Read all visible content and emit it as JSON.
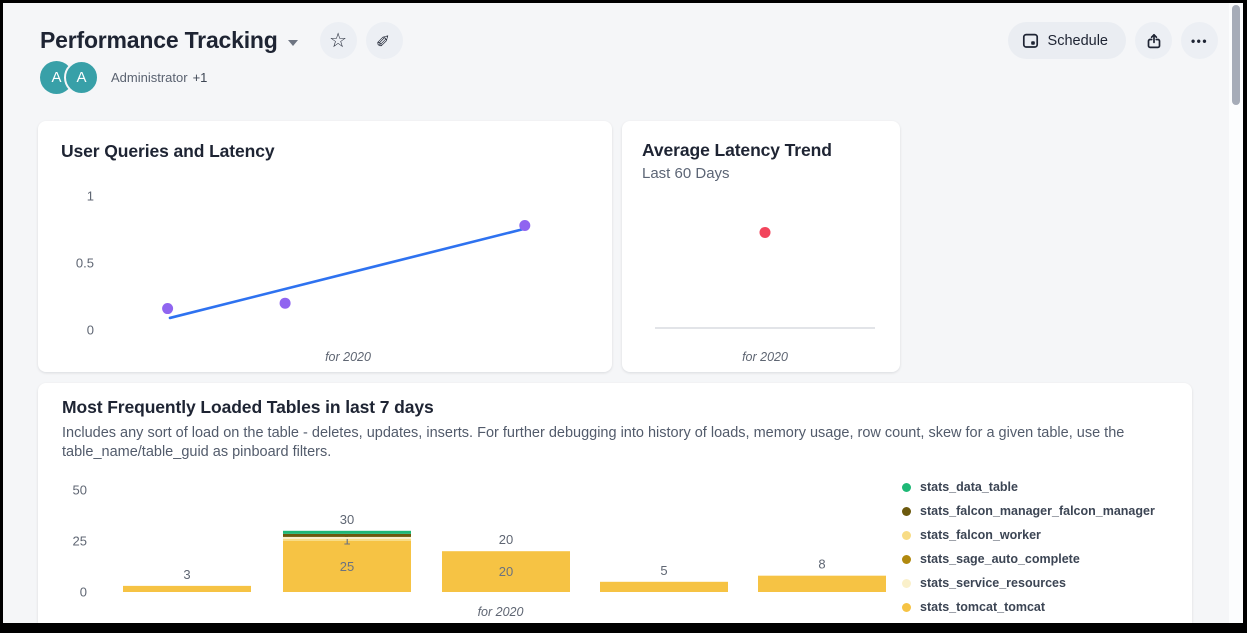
{
  "header": {
    "title": "Performance Tracking",
    "schedule_label": "Schedule",
    "icons": {
      "favorite": "☆",
      "edit": "✎",
      "more": "•••",
      "schedule": "calendar-icon",
      "share": "share-icon",
      "title_caret": "chevron-down"
    },
    "authors": {
      "avatar1": "A",
      "avatar2": "A",
      "name": "Administrator",
      "extra": "+1"
    }
  },
  "cards": [
    {
      "title": "User Queries and Latency",
      "caption": "for 2020"
    },
    {
      "title": "Average Latency Trend",
      "subtitle": "Last 60 Days",
      "caption": "for 2020"
    },
    {
      "title": "Most Frequently Loaded Tables in last 7 days",
      "description": "Includes any sort of load on the table - deletes, updates, inserts. For further debugging into history of loads, memory usage, row count, skew for a given table, use the table_name/table_guid as pinboard filters.",
      "caption": "for 2020"
    }
  ],
  "chart_data": [
    {
      "type": "scatter",
      "title": "User Queries and Latency",
      "points": [
        {
          "x": 0.08,
          "y": 0.16
        },
        {
          "x": 0.33,
          "y": 0.2
        },
        {
          "x": 0.84,
          "y": 0.78
        }
      ],
      "trendline": {
        "x1": 0.085,
        "y1": 0.09,
        "x2": 0.845,
        "y2": 0.76
      },
      "point_color": "#9065F0",
      "line_color": "#2E72F0",
      "yticks": [
        "0",
        "0.5",
        "1"
      ],
      "ylim": [
        0,
        1
      ],
      "grid": false,
      "xlabel": "",
      "ylabel": "",
      "caption": "for 2020"
    },
    {
      "type": "scatter",
      "title": "Average Latency Trend",
      "subtitle": "Last 60 Days",
      "points": [
        {
          "x": 0.5,
          "y": 0.65
        }
      ],
      "point_color": "#F2455C",
      "axis_line": true,
      "axis_line_color": "#D8DBE0",
      "yticks": [],
      "ylim": [
        0,
        1
      ],
      "grid": false,
      "xlabel": "",
      "ylabel": "",
      "caption": "for 2020"
    },
    {
      "type": "bar",
      "stacked": true,
      "title": "Most Frequently Loaded Tables in last 7 days",
      "categories": [
        "",
        "",
        "",
        "",
        ""
      ],
      "series": [
        {
          "name": "stats_data_table",
          "color": "#1EB876",
          "values": [
            0,
            1.5,
            0,
            0,
            0
          ]
        },
        {
          "name": "stats_falcon_manager_falcon_manager",
          "color": "#6C590D",
          "values": [
            0,
            1.5,
            0,
            0,
            0
          ]
        },
        {
          "name": "stats_falcon_worker",
          "color": "#F8DC85",
          "values": [
            0,
            1,
            0,
            0,
            0
          ]
        },
        {
          "name": "stats_sage_auto_complete",
          "color": "#B1890E",
          "values": [
            0,
            0,
            0,
            0,
            0
          ]
        },
        {
          "name": "stats_service_resources",
          "color": "#FAF0CA",
          "values": [
            0,
            1,
            0,
            0,
            0
          ]
        },
        {
          "name": "stats_tomcat_tomcat",
          "color": "#F6C344",
          "values": [
            3,
            25,
            20,
            5,
            8
          ]
        }
      ],
      "stack_order_bottom_to_top": [
        "stats_tomcat_tomcat",
        "stats_falcon_worker",
        "stats_service_resources",
        "stats_sage_auto_complete",
        "stats_falcon_manager_falcon_manager",
        "stats_data_table"
      ],
      "totals": [
        "3",
        "30",
        "20",
        "5",
        "8"
      ],
      "segment_labels": [
        {
          "bar": 1,
          "series": "stats_falcon_worker",
          "text": "1"
        },
        {
          "bar": 1,
          "series": "stats_tomcat_tomcat",
          "text": "25"
        },
        {
          "bar": 2,
          "series": "stats_tomcat_tomcat",
          "text": "20"
        }
      ],
      "yticks": [
        0,
        25,
        50
      ],
      "ylim": [
        0,
        50
      ],
      "grid": false,
      "legend_position": "right",
      "xlabel": "",
      "ylabel": "",
      "caption": "for 2020"
    }
  ]
}
